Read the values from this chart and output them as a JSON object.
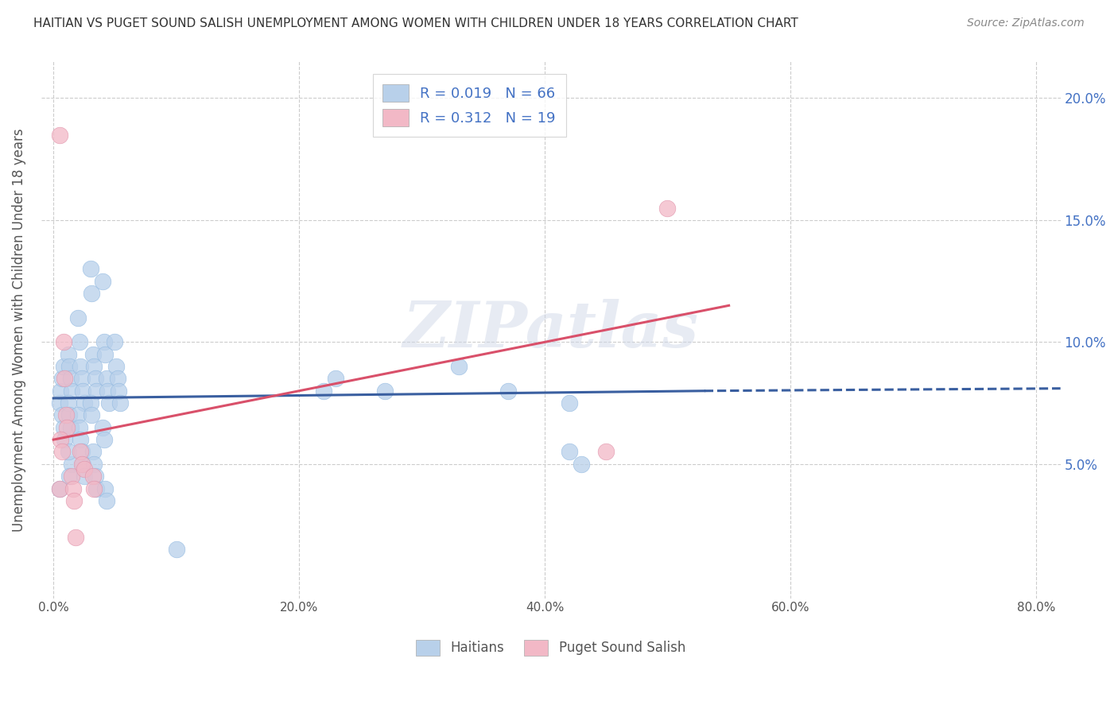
{
  "title": "HAITIAN VS PUGET SOUND SALISH UNEMPLOYMENT AMONG WOMEN WITH CHILDREN UNDER 18 YEARS CORRELATION CHART",
  "source": "Source: ZipAtlas.com",
  "ylabel": "Unemployment Among Women with Children Under 18 years",
  "x_tick_labels": [
    "0.0%",
    "20.0%",
    "40.0%",
    "60.0%",
    "80.0%"
  ],
  "x_tick_values": [
    0.0,
    0.2,
    0.4,
    0.6,
    0.8
  ],
  "y_tick_labels": [
    "5.0%",
    "10.0%",
    "15.0%",
    "20.0%"
  ],
  "y_tick_values": [
    0.05,
    0.1,
    0.15,
    0.2
  ],
  "xlim": [
    -0.01,
    0.82
  ],
  "ylim": [
    -0.005,
    0.215
  ],
  "legend_entries": [
    {
      "label": "R = 0.019   N = 66",
      "color": "#b8d0ea"
    },
    {
      "label": "R = 0.312   N = 19",
      "color": "#f2b8c6"
    }
  ],
  "legend_bottom": [
    "Haitians",
    "Puget Sound Salish"
  ],
  "haitians_color": "#b8d0ea",
  "salish_color": "#f2b8c6",
  "haitians_line_color": "#3a5fa0",
  "salish_line_color": "#d9506a",
  "background_color": "#ffffff",
  "grid_color": "#cccccc",
  "title_color": "#333333",
  "source_color": "#888888",
  "watermark": "ZIPatlas",
  "blue_dots": [
    [
      0.005,
      0.075
    ],
    [
      0.007,
      0.07
    ],
    [
      0.008,
      0.065
    ],
    [
      0.009,
      0.06
    ],
    [
      0.006,
      0.08
    ],
    [
      0.007,
      0.085
    ],
    [
      0.008,
      0.09
    ],
    [
      0.005,
      0.04
    ],
    [
      0.012,
      0.095
    ],
    [
      0.013,
      0.09
    ],
    [
      0.014,
      0.085
    ],
    [
      0.015,
      0.08
    ],
    [
      0.012,
      0.075
    ],
    [
      0.013,
      0.07
    ],
    [
      0.014,
      0.065
    ],
    [
      0.015,
      0.05
    ],
    [
      0.012,
      0.055
    ],
    [
      0.013,
      0.045
    ],
    [
      0.02,
      0.11
    ],
    [
      0.021,
      0.1
    ],
    [
      0.022,
      0.09
    ],
    [
      0.023,
      0.085
    ],
    [
      0.024,
      0.08
    ],
    [
      0.025,
      0.075
    ],
    [
      0.02,
      0.07
    ],
    [
      0.021,
      0.065
    ],
    [
      0.022,
      0.06
    ],
    [
      0.023,
      0.055
    ],
    [
      0.024,
      0.05
    ],
    [
      0.025,
      0.045
    ],
    [
      0.03,
      0.13
    ],
    [
      0.031,
      0.12
    ],
    [
      0.032,
      0.095
    ],
    [
      0.033,
      0.09
    ],
    [
      0.034,
      0.085
    ],
    [
      0.035,
      0.08
    ],
    [
      0.03,
      0.075
    ],
    [
      0.031,
      0.07
    ],
    [
      0.032,
      0.055
    ],
    [
      0.033,
      0.05
    ],
    [
      0.034,
      0.045
    ],
    [
      0.035,
      0.04
    ],
    [
      0.04,
      0.125
    ],
    [
      0.041,
      0.1
    ],
    [
      0.042,
      0.095
    ],
    [
      0.043,
      0.085
    ],
    [
      0.044,
      0.08
    ],
    [
      0.045,
      0.075
    ],
    [
      0.04,
      0.065
    ],
    [
      0.041,
      0.06
    ],
    [
      0.042,
      0.04
    ],
    [
      0.043,
      0.035
    ],
    [
      0.05,
      0.1
    ],
    [
      0.051,
      0.09
    ],
    [
      0.052,
      0.085
    ],
    [
      0.053,
      0.08
    ],
    [
      0.054,
      0.075
    ],
    [
      0.22,
      0.08
    ],
    [
      0.23,
      0.085
    ],
    [
      0.27,
      0.08
    ],
    [
      0.33,
      0.09
    ],
    [
      0.37,
      0.08
    ],
    [
      0.42,
      0.075
    ],
    [
      0.42,
      0.055
    ],
    [
      0.43,
      0.05
    ],
    [
      0.1,
      0.015
    ]
  ],
  "salish_dots": [
    [
      0.005,
      0.185
    ],
    [
      0.008,
      0.1
    ],
    [
      0.009,
      0.085
    ],
    [
      0.01,
      0.07
    ],
    [
      0.011,
      0.065
    ],
    [
      0.006,
      0.06
    ],
    [
      0.007,
      0.055
    ],
    [
      0.005,
      0.04
    ],
    [
      0.015,
      0.045
    ],
    [
      0.016,
      0.04
    ],
    [
      0.017,
      0.035
    ],
    [
      0.018,
      0.02
    ],
    [
      0.022,
      0.055
    ],
    [
      0.023,
      0.05
    ],
    [
      0.025,
      0.048
    ],
    [
      0.032,
      0.045
    ],
    [
      0.033,
      0.04
    ],
    [
      0.5,
      0.155
    ],
    [
      0.45,
      0.055
    ]
  ],
  "haitians_line": {
    "x0": 0.0,
    "x1": 0.53,
    "y0": 0.077,
    "y1": 0.08
  },
  "haitians_dashed_line": {
    "x0": 0.53,
    "x1": 0.82,
    "y0": 0.08,
    "y1": 0.081
  },
  "salish_line": {
    "x0": 0.0,
    "x1": 0.55,
    "y0": 0.06,
    "y1": 0.115
  }
}
